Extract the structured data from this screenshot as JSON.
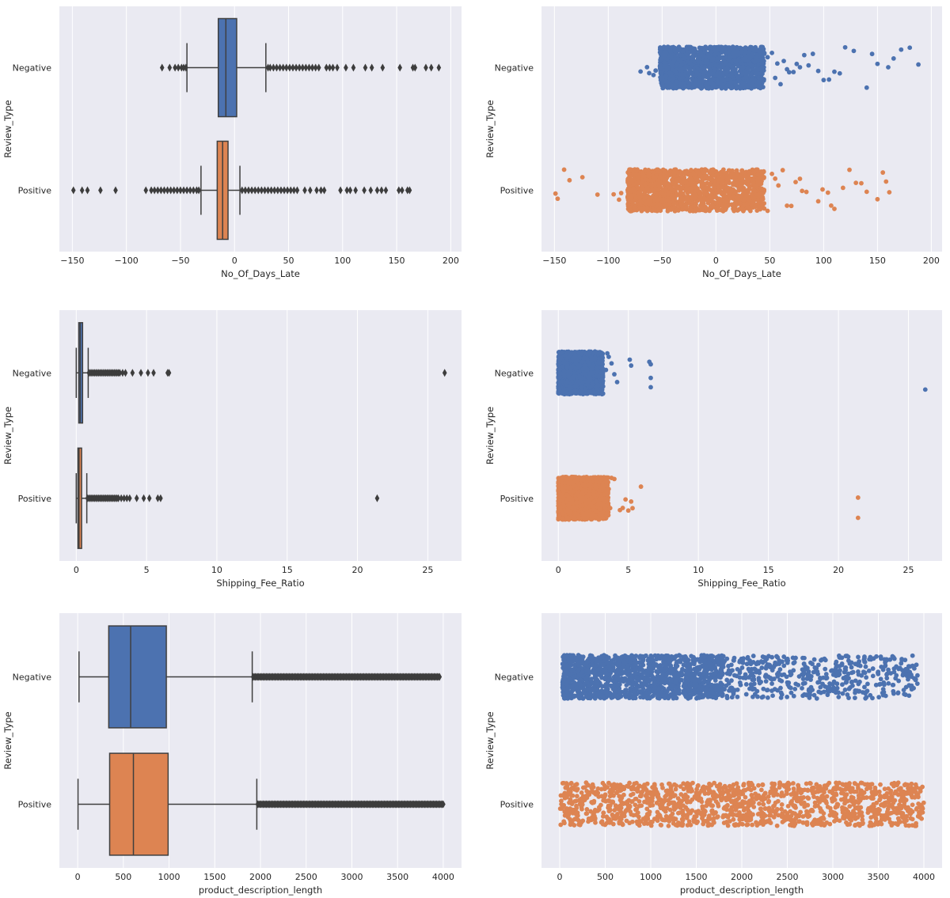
{
  "chart_data": [
    {
      "id": "days-late-box",
      "type": "boxplot",
      "xlabel": "No_Of_Days_Late",
      "ylabel": "Review_Type",
      "xlim": [
        -162,
        210
      ],
      "xticks": [
        -150,
        -100,
        -50,
        0,
        50,
        100,
        150,
        200
      ],
      "grid": true,
      "categories": [
        "Negative",
        "Positive"
      ],
      "colors": [
        "#4c72b0",
        "#dd8452"
      ],
      "boxes": [
        {
          "name": "Negative",
          "whisker_low": -44,
          "q1": -15,
          "median": -8,
          "q3": 2,
          "whisker_high": 29,
          "outliers": [
            -67,
            -60,
            -55,
            -52,
            -49,
            -47,
            -45,
            31,
            33,
            36,
            39,
            42,
            45,
            48,
            51,
            54,
            57,
            60,
            63,
            66,
            69,
            72,
            75,
            78,
            85,
            88,
            91,
            95,
            103,
            110,
            121,
            127,
            137,
            153,
            165,
            167,
            177,
            182,
            189
          ]
        },
        {
          "name": "Positive",
          "whisker_low": -31,
          "q1": -16,
          "median": -11,
          "q3": -6,
          "whisker_high": 5,
          "outliers": [
            -149,
            -141,
            -136,
            -124,
            -110,
            -82,
            -77,
            -74,
            -71,
            -68,
            -65,
            -62,
            -59,
            -56,
            -53,
            -50,
            -47,
            -44,
            -41,
            -38,
            -35,
            -33,
            7,
            10,
            13,
            16,
            19,
            22,
            25,
            28,
            31,
            34,
            37,
            40,
            43,
            46,
            49,
            52,
            55,
            58,
            65,
            70,
            76,
            80,
            83,
            98,
            104,
            107,
            112,
            120,
            126,
            132,
            136,
            140,
            152,
            155,
            160,
            162
          ]
        }
      ]
    },
    {
      "id": "days-late-strip",
      "type": "stripplot",
      "xlabel": "No_Of_Days_Late",
      "ylabel": "Review_Type",
      "xlim": [
        -162,
        210
      ],
      "xticks": [
        -150,
        -100,
        -50,
        0,
        50,
        100,
        150,
        200
      ],
      "grid": true,
      "categories": [
        "Negative",
        "Positive"
      ],
      "colors": [
        "#4c72b0",
        "#dd8452"
      ],
      "strips": [
        {
          "name": "Negative",
          "dense_range": [
            -52,
            45
          ],
          "sparse_points": [
            -70,
            -64,
            -62,
            -58,
            -56,
            48,
            52,
            55,
            57,
            60,
            63,
            66,
            68,
            72,
            75,
            78,
            82,
            86,
            90,
            95,
            100,
            105,
            110,
            115,
            120,
            128,
            140,
            145,
            150,
            160,
            165,
            172,
            180,
            188
          ]
        },
        {
          "name": "Positive",
          "dense_range": [
            -82,
            45
          ],
          "sparse_points": [
            -149,
            -147,
            -141,
            -136,
            -124,
            -110,
            -95,
            -90,
            -88,
            48,
            52,
            55,
            58,
            62,
            66,
            70,
            74,
            78,
            80,
            84,
            95,
            99,
            104,
            107,
            110,
            118,
            124,
            130,
            135,
            140,
            150,
            155,
            158,
            161
          ]
        }
      ]
    },
    {
      "id": "fee-ratio-box",
      "type": "boxplot",
      "xlabel": "Shipping_Fee_Ratio",
      "ylabel": "Review_Type",
      "xlim": [
        -1.2,
        27.4
      ],
      "xticks": [
        0,
        5,
        10,
        15,
        20,
        25
      ],
      "grid": true,
      "categories": [
        "Negative",
        "Positive"
      ],
      "colors": [
        "#4c72b0",
        "#dd8452"
      ],
      "boxes": [
        {
          "name": "Negative",
          "whisker_low": 0,
          "q1": 0.18,
          "median": 0.28,
          "q3": 0.45,
          "whisker_high": 0.85,
          "outliers": [
            0.9,
            1.0,
            1.1,
            1.2,
            1.3,
            1.4,
            1.5,
            1.6,
            1.7,
            1.8,
            1.9,
            2.0,
            2.1,
            2.2,
            2.3,
            2.4,
            2.5,
            2.6,
            2.7,
            2.8,
            2.9,
            3.0,
            3.1,
            3.3,
            3.5,
            4.0,
            4.6,
            5.1,
            5.5,
            6.5,
            6.6,
            26.2
          ]
        },
        {
          "name": "Positive",
          "whisker_low": 0,
          "q1": 0.12,
          "median": 0.2,
          "q3": 0.38,
          "whisker_high": 0.75,
          "outliers": [
            0.8,
            0.9,
            1.0,
            1.1,
            1.2,
            1.3,
            1.4,
            1.5,
            1.6,
            1.7,
            1.8,
            1.9,
            2.0,
            2.1,
            2.2,
            2.3,
            2.4,
            2.5,
            2.6,
            2.7,
            2.8,
            2.9,
            3.0,
            3.2,
            3.4,
            3.6,
            3.8,
            4.3,
            4.8,
            5.2,
            5.8,
            6.0,
            21.4
          ]
        }
      ]
    },
    {
      "id": "fee-ratio-strip",
      "type": "stripplot",
      "xlabel": "Shipping_Fee_Ratio",
      "ylabel": "Review_Type",
      "xlim": [
        -1.2,
        27.4
      ],
      "xticks": [
        0,
        5,
        10,
        15,
        20,
        25
      ],
      "grid": true,
      "categories": [
        "Negative",
        "Positive"
      ],
      "colors": [
        "#4c72b0",
        "#dd8452"
      ],
      "strips": [
        {
          "name": "Negative",
          "dense_range": [
            0,
            3.2
          ],
          "sparse_points": [
            3.4,
            3.5,
            3.6,
            3.8,
            4.0,
            4.2,
            5.1,
            5.2,
            6.5,
            6.6,
            6.6,
            6.6,
            26.2
          ]
        },
        {
          "name": "Positive",
          "dense_range": [
            0,
            3.6
          ],
          "sparse_points": [
            3.7,
            3.8,
            4.0,
            4.4,
            4.6,
            4.8,
            5.0,
            5.2,
            5.3,
            5.9,
            21.4,
            21.4
          ]
        }
      ]
    },
    {
      "id": "desc-length-box",
      "type": "boxplot",
      "xlabel": "product_description_length",
      "ylabel": "Review_Type",
      "xlim": [
        -200,
        4200
      ],
      "xticks": [
        0,
        500,
        1000,
        1500,
        2000,
        2500,
        3000,
        3500,
        4000
      ],
      "grid": true,
      "categories": [
        "Negative",
        "Positive"
      ],
      "colors": [
        "#4c72b0",
        "#dd8452"
      ],
      "boxes": [
        {
          "name": "Negative",
          "whisker_low": 15,
          "q1": 340,
          "median": 580,
          "q3": 970,
          "whisker_high": 1910,
          "outliers_range": [
            1920,
            3960
          ]
        },
        {
          "name": "Positive",
          "whisker_low": 4,
          "q1": 350,
          "median": 610,
          "q3": 990,
          "whisker_high": 1960,
          "outliers_range": [
            1970,
            4000
          ]
        }
      ]
    },
    {
      "id": "desc-length-strip",
      "type": "stripplot",
      "xlabel": "product_description_length",
      "ylabel": "Review_Type",
      "xlim": [
        -200,
        4200
      ],
      "xticks": [
        0,
        500,
        1000,
        1500,
        2000,
        2500,
        3000,
        3500,
        4000
      ],
      "grid": true,
      "categories": [
        "Negative",
        "Positive"
      ],
      "colors": [
        "#4c72b0",
        "#dd8452"
      ],
      "strips": [
        {
          "name": "Negative",
          "dense_range": [
            30,
            1800
          ],
          "sparse_range": [
            1800,
            3930
          ]
        },
        {
          "name": "Positive",
          "dense_range": [
            5,
            4000
          ]
        }
      ]
    }
  ]
}
